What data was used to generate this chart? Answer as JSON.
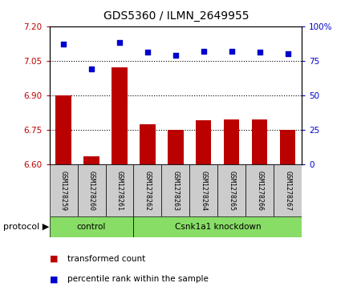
{
  "title": "GDS5360 / ILMN_2649955",
  "samples": [
    "GSM1278259",
    "GSM1278260",
    "GSM1278261",
    "GSM1278262",
    "GSM1278263",
    "GSM1278264",
    "GSM1278265",
    "GSM1278266",
    "GSM1278267"
  ],
  "bar_values": [
    6.9,
    6.635,
    7.02,
    6.775,
    6.75,
    6.79,
    6.795,
    6.795,
    6.75
  ],
  "blue_values": [
    87,
    69,
    88,
    81,
    79,
    82,
    82,
    81,
    80
  ],
  "bar_bottom": 6.6,
  "ylim_left": [
    6.6,
    7.2
  ],
  "ylim_right": [
    0,
    100
  ],
  "yticks_left": [
    6.6,
    6.75,
    6.9,
    7.05,
    7.2
  ],
  "yticks_right": [
    0,
    25,
    50,
    75,
    100
  ],
  "hlines": [
    6.75,
    6.9,
    7.05
  ],
  "control_samples": 3,
  "protocol_label": "protocol",
  "control_label": "control",
  "knockdown_label": "Csnk1a1 knockdown",
  "bar_color": "#BB0000",
  "blue_color": "#0000CC",
  "green_color": "#88DD66",
  "bg_color": "#CCCCCC",
  "legend_bar_label": "transformed count",
  "legend_blue_label": "percentile rank within the sample",
  "title_fontsize": 10,
  "tick_fontsize": 7.5,
  "label_fontsize": 7.5,
  "sample_fontsize": 6.0,
  "protocol_fontsize": 8
}
